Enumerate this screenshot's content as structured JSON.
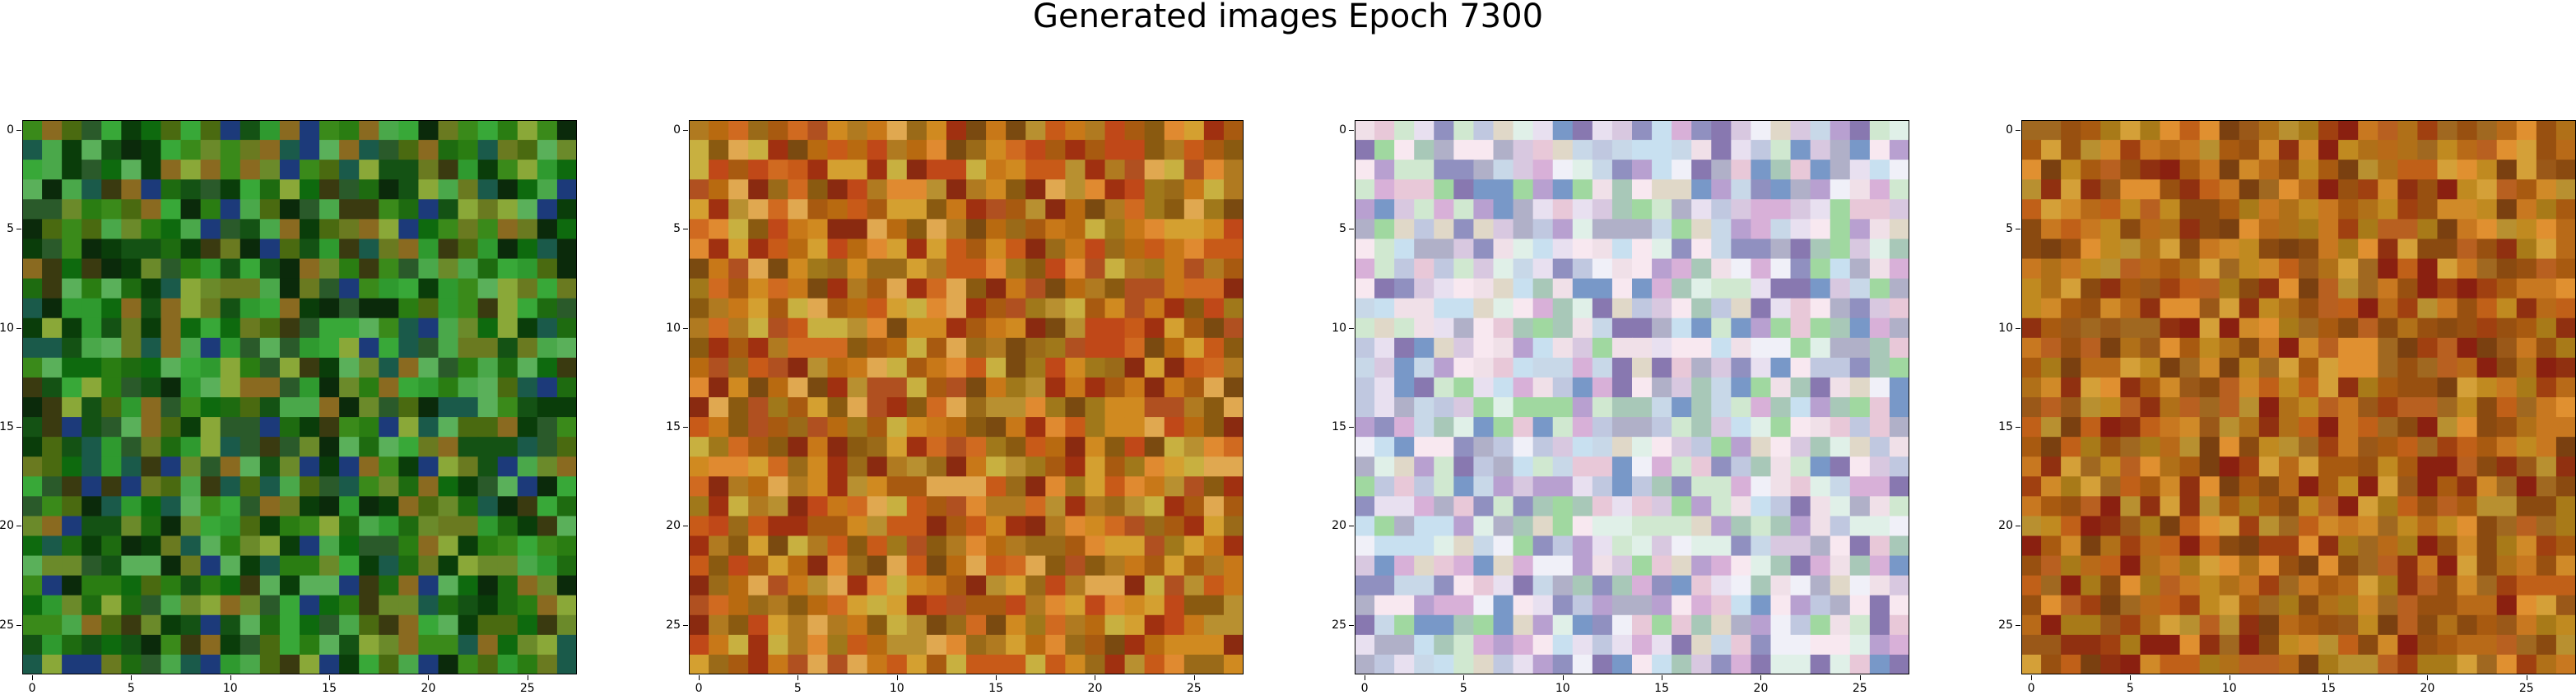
{
  "figure": {
    "title": "Generated images Epoch 7300"
  },
  "axes": {
    "ticks": [
      "0",
      "5",
      "10",
      "15",
      "20",
      "25"
    ]
  },
  "panels": [
    {
      "name": "green",
      "palette": [
        "#0a3d0a",
        "#145214",
        "#1e6b10",
        "#2a7d12",
        "#3a8a1a",
        "#0e6a0e",
        "#2f9a2f",
        "#4aa84a",
        "#6b8a2a",
        "#8aa838",
        "#1a5a4a",
        "#0b2a0b",
        "#1c3a7a",
        "#6a7a20",
        "#4a6a10",
        "#2a5a2a",
        "#38a838",
        "#5ab05a",
        "#8a6a20",
        "#3a3a10"
      ]
    },
    {
      "name": "orange",
      "palette": [
        "#b86a10",
        "#c87818",
        "#a85a10",
        "#d08a20",
        "#b07a20",
        "#c85a18",
        "#a0781a",
        "#d4a030",
        "#8a5a10",
        "#c04818",
        "#a03010",
        "#e08a30",
        "#b89030",
        "#9a6a18",
        "#d06a20",
        "#7a4a10",
        "#c8b040",
        "#8a2a10",
        "#e0a850",
        "#b05020"
      ]
    },
    {
      "name": "pastel",
      "palette": [
        "#e8e0f0",
        "#d8c8e0",
        "#c0c8e0",
        "#e0f0e8",
        "#f0e0e8",
        "#b8a0d0",
        "#a8c8b8",
        "#d0e8d0",
        "#f0f0f8",
        "#9090c0",
        "#c8d8e8",
        "#e8c8d8",
        "#7898c8",
        "#a0d8a0",
        "#d8b0d8",
        "#c8e0f0",
        "#b0b0c8",
        "#e0d8c8",
        "#8878b0",
        "#f8e8f0"
      ]
    },
    {
      "name": "brown",
      "palette": [
        "#a85a10",
        "#b86a18",
        "#c87820",
        "#985010",
        "#b07018",
        "#a04010",
        "#c08a20",
        "#8a4a10",
        "#b86020",
        "#a87a18",
        "#d08a28",
        "#903010",
        "#b89030",
        "#7a4010",
        "#c06018",
        "#a06820",
        "#d4a038",
        "#8a2010",
        "#e09030",
        "#9a5818"
      ]
    }
  ]
}
